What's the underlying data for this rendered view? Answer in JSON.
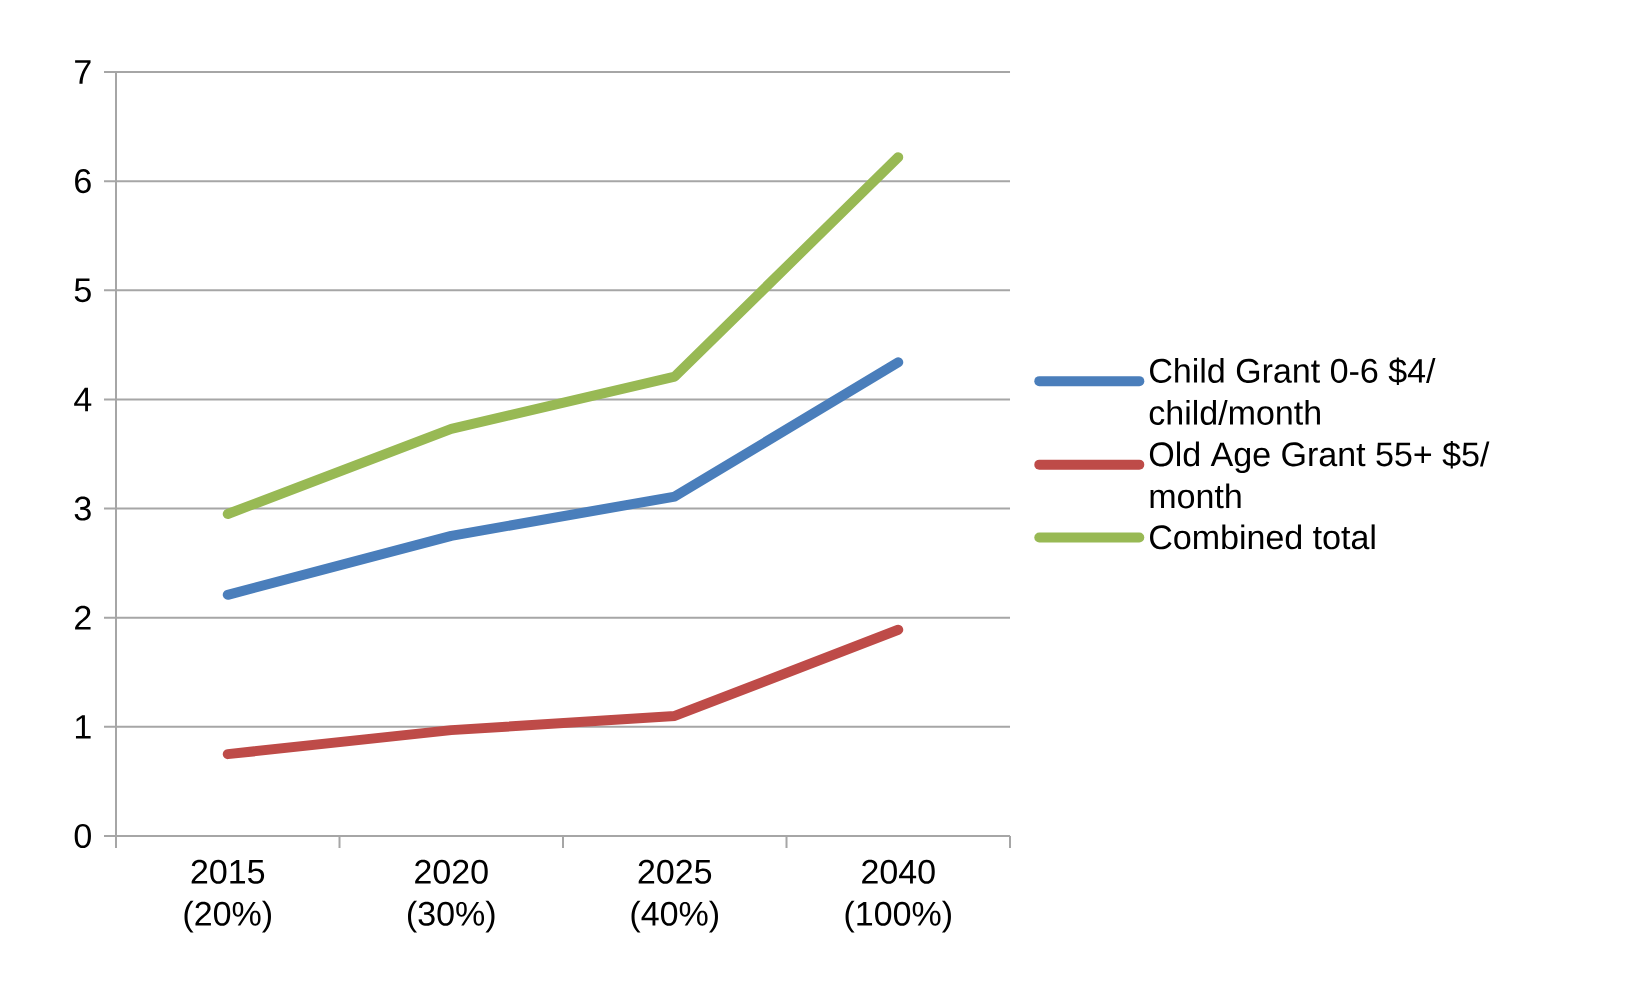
{
  "chart_data": {
    "type": "line",
    "categories": [
      "2015 (20%)",
      "2020 (30%)",
      "2025 (40%)",
      "2040 (100%)"
    ],
    "series": [
      {
        "name": "Child Grant 0-6 $4/ child/month",
        "color": "#4a7ebb",
        "values": [
          2.21,
          2.75,
          3.11,
          4.34
        ]
      },
      {
        "name": "Old Age Grant 55+ $5/ month",
        "color": "#be4b48",
        "values": [
          0.75,
          0.97,
          1.1,
          1.89
        ]
      },
      {
        "name": "Combined total",
        "color": "#98b954",
        "values": [
          2.95,
          3.73,
          4.21,
          6.22
        ]
      }
    ],
    "ylim": [
      0,
      7
    ],
    "yticks": [
      0,
      1,
      2,
      3,
      4,
      5,
      6,
      7
    ],
    "grid": "y",
    "legend": "right",
    "marker": "none",
    "line_style": "solid"
  }
}
